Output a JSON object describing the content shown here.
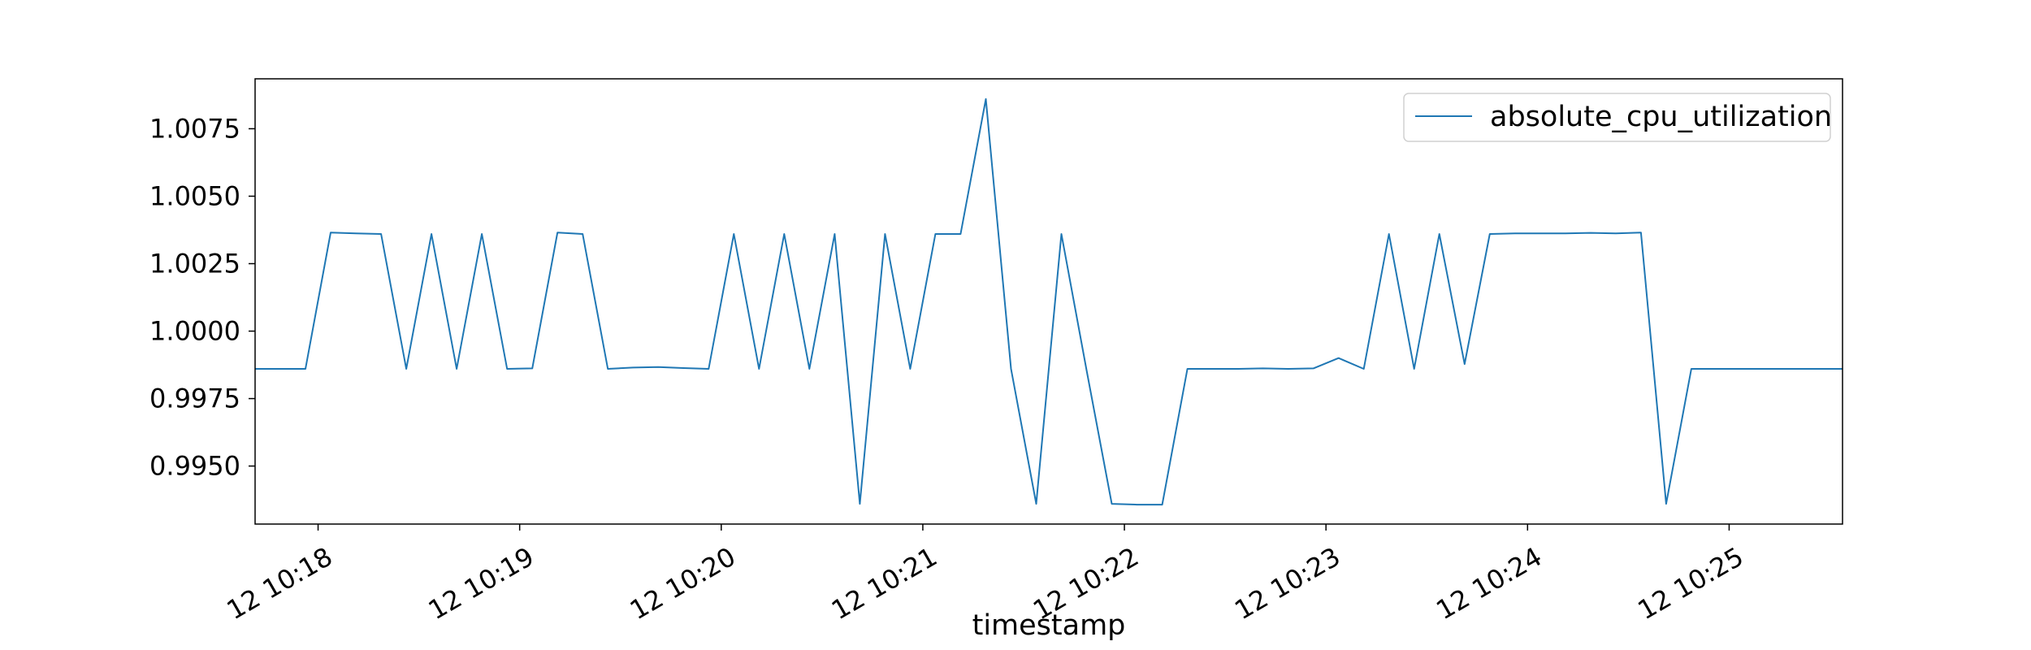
{
  "chart_data": {
    "type": "line",
    "title": "",
    "xlabel": "timestamp",
    "ylabel": "",
    "grid": false,
    "legend_placement": "top-right",
    "x_ticks": [
      "12 10:18",
      "12 10:19",
      "12 10:20",
      "12 10:21",
      "12 10:22",
      "12 10:23",
      "12 10:24",
      "12 10:25"
    ],
    "x_tick_minutes": [
      18,
      19,
      20,
      21,
      22,
      23,
      24,
      25
    ],
    "xlim_minutes": [
      17.6875,
      25.5625
    ],
    "y_ticks": [
      "0.9950",
      "0.9975",
      "1.0000",
      "1.0025",
      "1.0050",
      "1.0075"
    ],
    "y_tick_values": [
      0.995,
      0.9975,
      1.0,
      1.0025,
      1.005,
      1.0075
    ],
    "ylim": [
      0.99285,
      1.00935
    ],
    "series": [
      {
        "name": "absolute_cpu_utilization",
        "color": "#1f77b4",
        "x_minutes": [
          17.6875,
          17.8125,
          17.9375,
          18.0625,
          18.1875,
          18.3125,
          18.4375,
          18.5625,
          18.6875,
          18.8125,
          18.9375,
          19.0625,
          19.1875,
          19.3125,
          19.4375,
          19.5625,
          19.6875,
          19.8125,
          19.9375,
          20.0625,
          20.1875,
          20.3125,
          20.4375,
          20.5625,
          20.6875,
          20.8125,
          20.9375,
          21.0625,
          21.1875,
          21.3125,
          21.4375,
          21.5625,
          21.6875,
          21.8125,
          21.9375,
          22.0625,
          22.1875,
          22.3125,
          22.4375,
          22.5625,
          22.6875,
          22.8125,
          22.9375,
          23.0625,
          23.1875,
          23.3125,
          23.4375,
          23.5625,
          23.6875,
          23.8125,
          23.9375,
          24.0625,
          24.1875,
          24.3125,
          24.4375,
          24.5625,
          24.6875,
          24.8125,
          24.9375,
          25.0625,
          25.1875,
          25.3125,
          25.4375,
          25.5625
        ],
        "values": [
          0.9986,
          0.9986,
          0.9986,
          1.00365,
          1.00362,
          1.0036,
          0.9986,
          1.0036,
          0.9986,
          1.0036,
          0.9986,
          0.99862,
          1.00365,
          1.0036,
          0.9986,
          0.99865,
          0.99867,
          0.99863,
          0.9986,
          1.0036,
          0.9986,
          1.0036,
          0.9986,
          1.0036,
          0.9936,
          1.0036,
          0.9986,
          1.0036,
          1.0036,
          1.0086,
          0.9986,
          0.9936,
          1.0036,
          0.99855,
          0.9936,
          0.99357,
          0.99357,
          0.9986,
          0.9986,
          0.9986,
          0.99862,
          0.9986,
          0.99862,
          0.999,
          0.9986,
          1.0036,
          0.9986,
          1.0036,
          0.99878,
          1.0036,
          1.00362,
          1.00362,
          1.00362,
          1.00364,
          1.00362,
          1.00365,
          0.9936,
          0.9986,
          0.9986,
          0.9986,
          0.9986,
          0.9986,
          0.9986,
          0.9986
        ]
      }
    ]
  }
}
